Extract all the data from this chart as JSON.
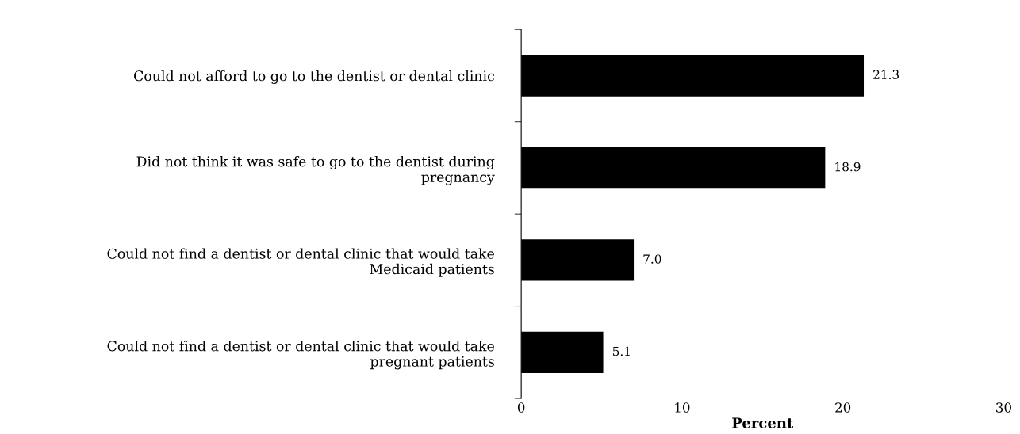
{
  "chart_data": {
    "type": "bar",
    "orientation": "horizontal",
    "categories": [
      "Could not afford to go to the dentist or dental clinic",
      "Did not think it was safe to go to the dentist during\npregnancy",
      "Could not find a dentist or dental clinic that would take\nMedicaid patients",
      "Could not find a dentist or dental clinic that would take\npregnant patients"
    ],
    "values": [
      21.3,
      18.9,
      7.0,
      5.1
    ],
    "value_labels": [
      "21.3",
      "18.9",
      "7.0",
      "5.1"
    ],
    "color": "#000000",
    "xlabel": "Percent",
    "xlim": [
      0,
      30
    ],
    "xticks": [
      0,
      10,
      20,
      30
    ],
    "grid": false,
    "legend": false
  }
}
